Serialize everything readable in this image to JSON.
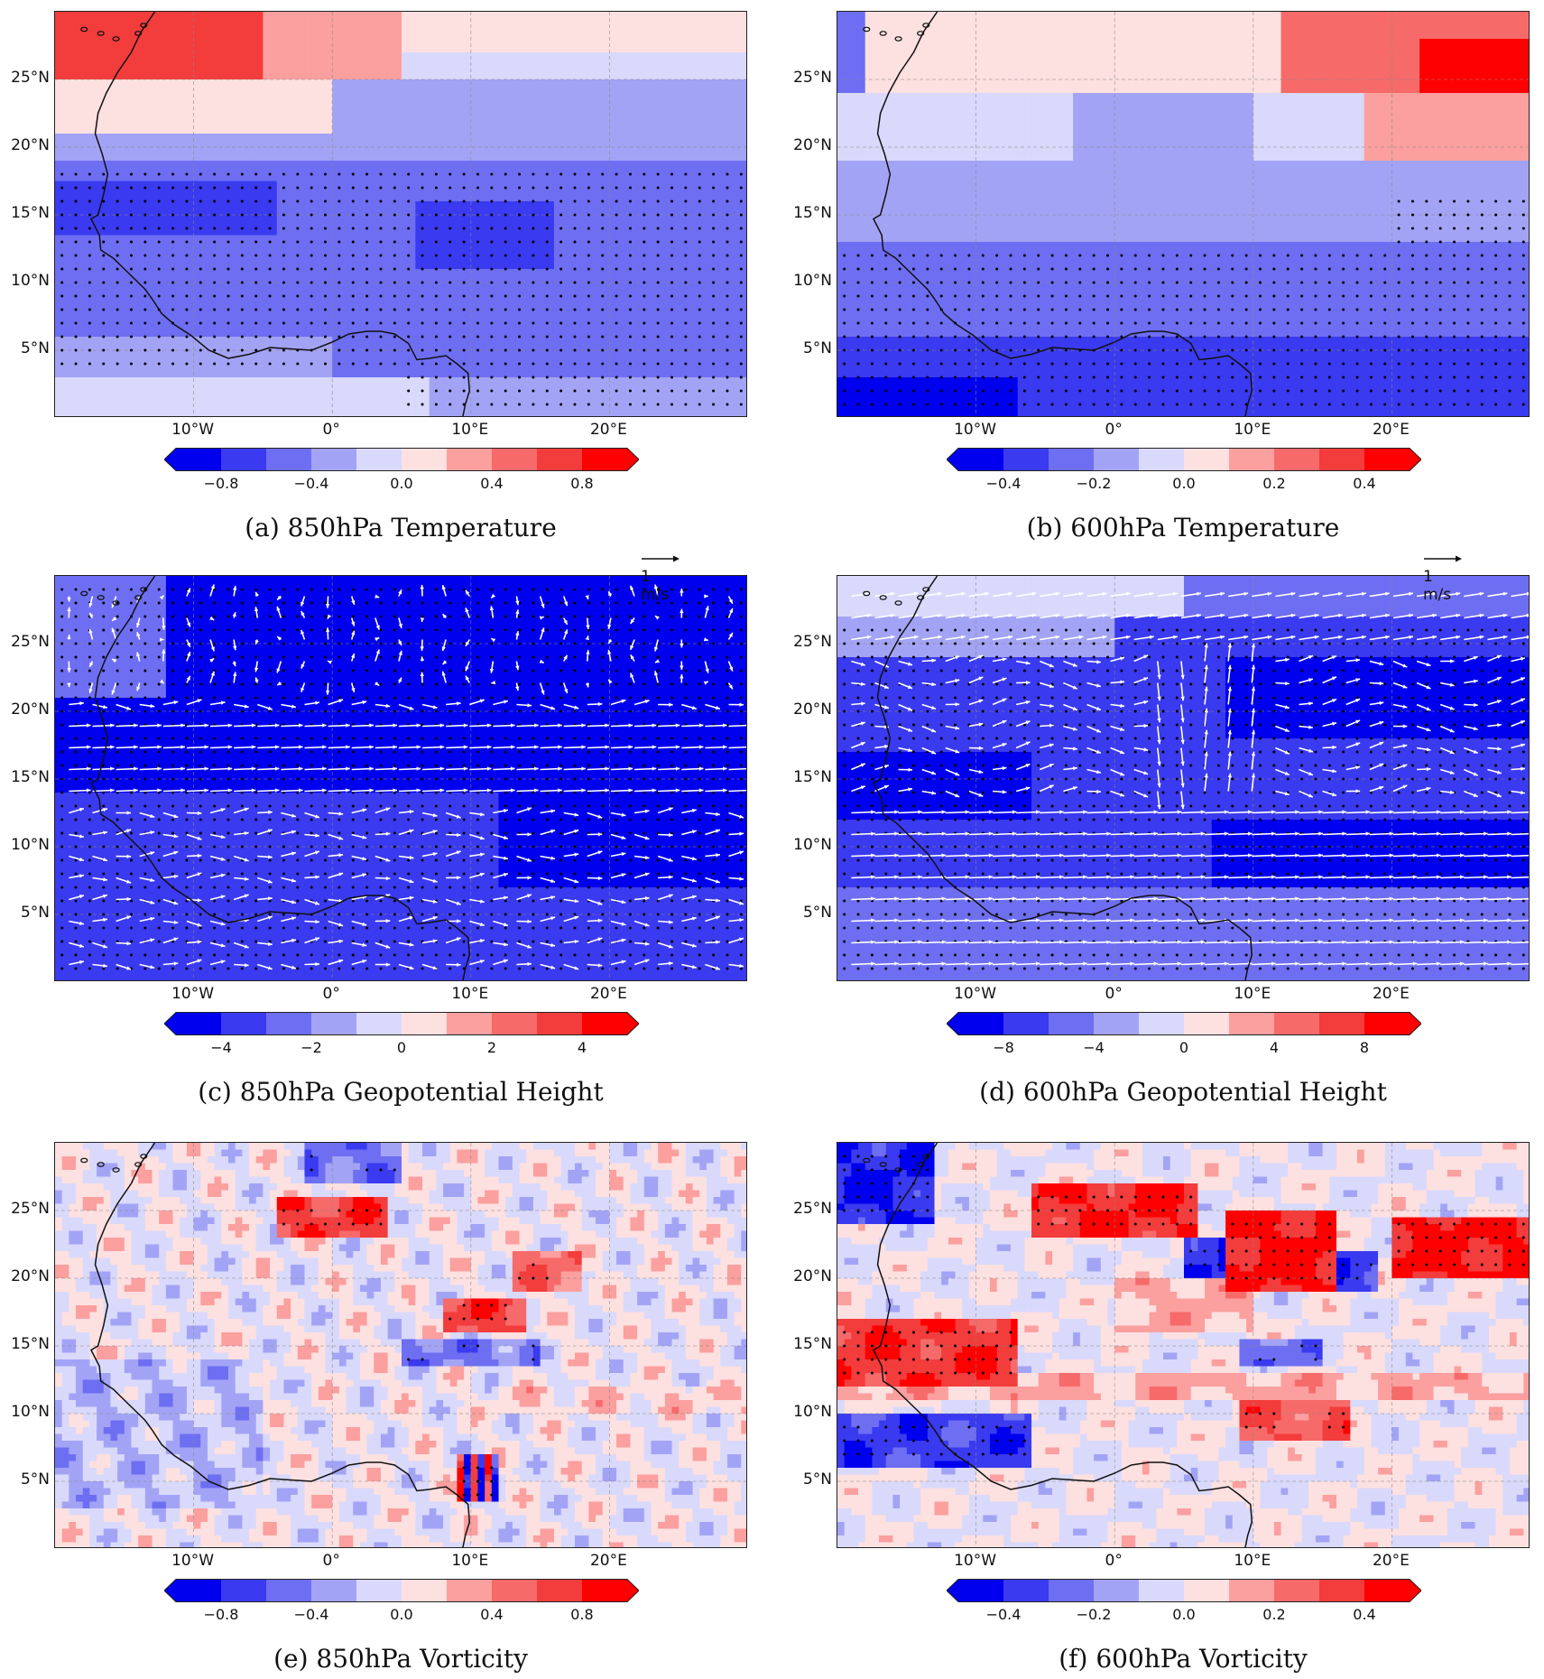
{
  "panels": [
    {
      "id": "a",
      "caption": "(a)  850hPa  Temperature",
      "field": "temp850",
      "cb_ticks": [
        "−0.8",
        "−0.4",
        "0.0",
        "0.4",
        "0.8"
      ],
      "vectors": false
    },
    {
      "id": "b",
      "caption": "(b)  600hPa  Temperature",
      "field": "temp600",
      "cb_ticks": [
        "−0.4",
        "−0.2",
        "0.0",
        "0.2",
        "0.4"
      ],
      "vectors": false
    },
    {
      "id": "c",
      "caption": "(c)  850hPa  Geopotential  Height",
      "field": "gph850",
      "cb_ticks": [
        "−4",
        "−2",
        "0",
        "2",
        "4"
      ],
      "vectors": true
    },
    {
      "id": "d",
      "caption": "(d)  600hPa  Geopotential  Height",
      "field": "gph600",
      "cb_ticks": [
        "−8",
        "−4",
        "0",
        "4",
        "8"
      ],
      "vectors": true
    },
    {
      "id": "e",
      "caption": "(e)  850hPa  Vorticity",
      "field": "vort850",
      "cb_ticks": [
        "−0.8",
        "−0.4",
        "0.0",
        "0.4",
        "0.8"
      ],
      "vectors": false
    },
    {
      "id": "f",
      "caption": "(f)  600hPa  Vorticity",
      "field": "vort600",
      "cb_ticks": [
        "−0.4",
        "−0.2",
        "0.0",
        "0.2",
        "0.4"
      ],
      "vectors": false
    }
  ],
  "lat_labels": [
    "25°N",
    "20°N",
    "15°N",
    "10°N",
    "5°N"
  ],
  "lon_labels": [
    "10°W",
    "0°",
    "10°E",
    "20°E"
  ],
  "ref_vector_label": "1 m/s",
  "colors": {
    "scale": [
      "#0000ee",
      "#3a3af0",
      "#6e6ef3",
      "#a3a3f6",
      "#d9d9fb",
      "#fde0e0",
      "#fb9f9f",
      "#f76a6a",
      "#f33c3c",
      "#ff0000"
    ],
    "coast": "#111111",
    "vector": "#ffffff",
    "stipple": "#000000"
  }
}
